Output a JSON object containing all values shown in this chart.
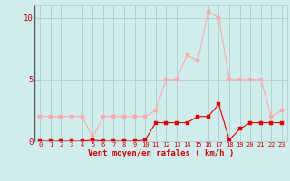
{
  "x": [
    0,
    1,
    2,
    3,
    4,
    5,
    6,
    7,
    8,
    9,
    10,
    11,
    12,
    13,
    14,
    15,
    16,
    17,
    18,
    19,
    20,
    21,
    22,
    23
  ],
  "rafales": [
    2.0,
    2.0,
    2.0,
    2.0,
    2.0,
    0.3,
    2.0,
    2.0,
    2.0,
    2.0,
    2.0,
    2.5,
    5.0,
    5.0,
    7.0,
    6.5,
    10.5,
    10.0,
    5.0,
    5.0,
    5.0,
    5.0,
    2.0,
    2.5
  ],
  "vent_moyen": [
    0.0,
    0.0,
    0.0,
    0.0,
    0.0,
    0.1,
    0.0,
    0.0,
    0.0,
    0.0,
    0.1,
    1.5,
    1.5,
    1.5,
    1.5,
    2.0,
    2.0,
    3.0,
    0.1,
    1.0,
    1.5,
    1.5,
    1.5,
    1.5
  ],
  "color_rafales": "#ffaaaa",
  "color_vent": "#dd0000",
  "bg_color": "#d0ecec",
  "grid_color": "#aacccc",
  "xlabel": "Vent moyen/en rafales ( km/h )",
  "xlabel_color": "#cc0000",
  "tick_color": "#cc0000",
  "ylim": [
    0,
    11
  ],
  "xlim": [
    -0.5,
    23.5
  ],
  "yticks": [
    0,
    5,
    10
  ],
  "ytick_labels": [
    "0",
    "5",
    "10"
  ],
  "xticks": [
    0,
    1,
    2,
    3,
    4,
    5,
    6,
    7,
    8,
    9,
    10,
    11,
    12,
    13,
    14,
    15,
    16,
    17,
    18,
    19,
    20,
    21,
    22,
    23
  ],
  "marker_size": 2.5,
  "linewidth": 0.8,
  "xlabel_fontsize": 6.5,
  "xtick_fontsize": 5.0,
  "ytick_fontsize": 6.5
}
